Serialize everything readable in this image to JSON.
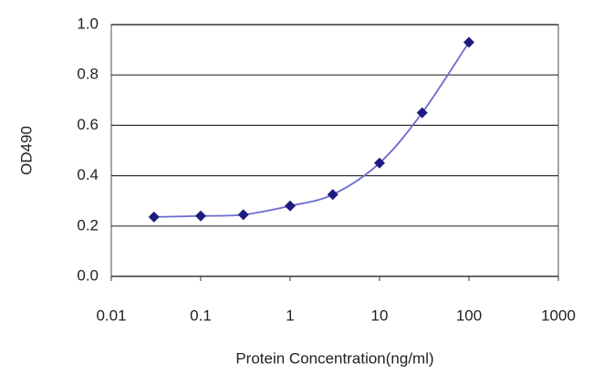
{
  "chart_data": {
    "type": "line",
    "xlabel": "Protein Concentration(ng/ml)",
    "ylabel": "OD490",
    "x": [
      0.03,
      0.1,
      0.3,
      1,
      3,
      10,
      30,
      100
    ],
    "series": [
      {
        "color": "#1c1c80",
        "line_color": "#6b6bd0",
        "values": [
          0.236,
          0.24,
          0.245,
          0.28,
          0.325,
          0.45,
          0.65,
          0.93
        ]
      }
    ],
    "xscale": "log",
    "xlim": [
      0.01,
      1000
    ],
    "xticks": [
      0.01,
      0.1,
      1,
      10,
      100,
      1000
    ],
    "ylim": [
      0,
      1
    ],
    "yticks": [
      {
        "value": 0,
        "label": "0.0"
      },
      0.2,
      0.4,
      0.6,
      0.8,
      {
        "value": 1,
        "label": "1.0"
      }
    ],
    "grid": true
  }
}
